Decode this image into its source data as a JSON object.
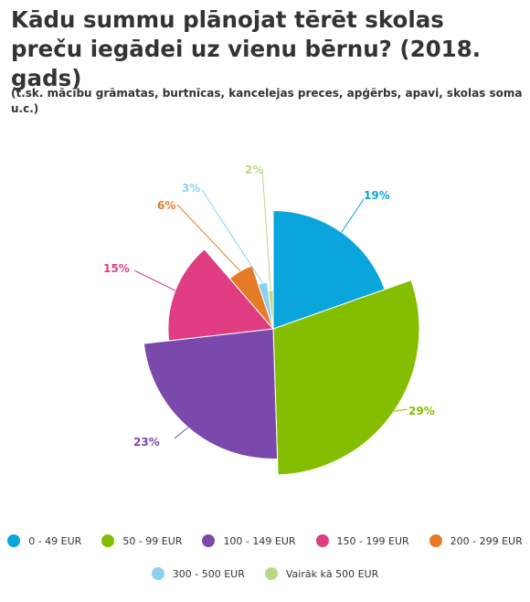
{
  "chart_data": {
    "type": "pie",
    "title": "Kādu summu plānojat tērēt skolas preču iegādei uz vienu bērnu? (2018. gads)",
    "subtitle": "(t.sk.  mācību grāmatas, burtnīcas, kancelejas preces, apģērbs, apavi, skolas soma u.c.)",
    "variable_radius": true,
    "categories": [
      "0 - 49 EUR",
      "50 - 99 EUR",
      "100 - 149 EUR",
      "150 - 199 EUR",
      "200 - 299 EUR",
      "300 - 500 EUR",
      "Vairāk kā 500 EUR"
    ],
    "values": [
      19,
      29,
      23,
      15,
      6,
      3,
      2
    ],
    "labels": [
      "19%",
      "29%",
      "23%",
      "15%",
      "6%",
      "3%",
      "2%"
    ],
    "colors": [
      "#0aa5dc",
      "#84be00",
      "#7b48ac",
      "#e03c82",
      "#e57b27",
      "#8cd0f0",
      "#b9d985"
    ],
    "legend_position": "bottom"
  }
}
